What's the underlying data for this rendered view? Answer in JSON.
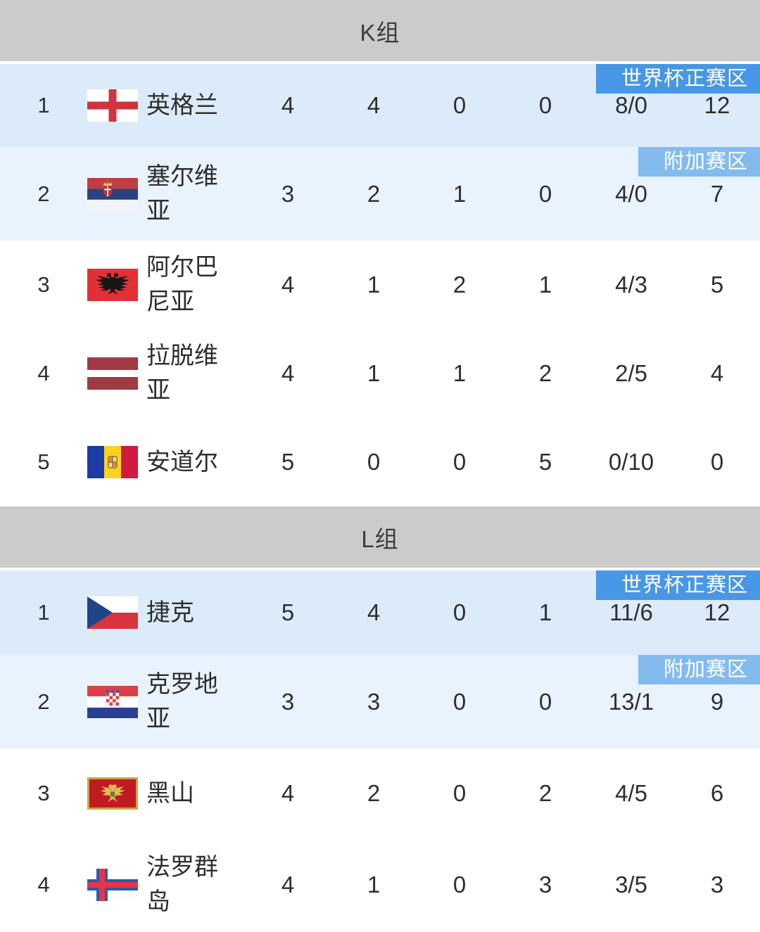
{
  "colors": {
    "header_bg": "#cbcbca",
    "header_text": "#3c3c3e",
    "rank1_row_bg": "#dcebfa",
    "rank2_row_bg": "#e9f3fd",
    "badge_qualified_bg": "#4897e6",
    "badge_playoff_bg": "#83bbef",
    "body_text": "#2e2e30"
  },
  "groups": [
    {
      "title": "K组",
      "rows": [
        {
          "rank": "1",
          "team": "英格兰",
          "flag": "england",
          "played": "4",
          "won": "4",
          "drawn": "0",
          "lost": "0",
          "goals": "8/0",
          "points": "12",
          "badge": "世界杯正赛区",
          "badge_type": "qualified"
        },
        {
          "rank": "2",
          "team": "塞尔维亚",
          "flag": "serbia",
          "played": "3",
          "won": "2",
          "drawn": "1",
          "lost": "0",
          "goals": "4/0",
          "points": "7",
          "badge": "附加赛区",
          "badge_type": "playoff"
        },
        {
          "rank": "3",
          "team": "阿尔巴尼亚",
          "flag": "albania",
          "played": "4",
          "won": "1",
          "drawn": "2",
          "lost": "1",
          "goals": "4/3",
          "points": "5",
          "badge": "",
          "badge_type": ""
        },
        {
          "rank": "4",
          "team": "拉脱维亚",
          "flag": "latvia",
          "played": "4",
          "won": "1",
          "drawn": "1",
          "lost": "2",
          "goals": "2/5",
          "points": "4",
          "badge": "",
          "badge_type": ""
        },
        {
          "rank": "5",
          "team": "安道尔",
          "flag": "andorra",
          "played": "5",
          "won": "0",
          "drawn": "0",
          "lost": "5",
          "goals": "0/10",
          "points": "0",
          "badge": "",
          "badge_type": ""
        }
      ]
    },
    {
      "title": "L组",
      "rows": [
        {
          "rank": "1",
          "team": "捷克",
          "flag": "czech",
          "played": "5",
          "won": "4",
          "drawn": "0",
          "lost": "1",
          "goals": "11/6",
          "points": "12",
          "badge": "世界杯正赛区",
          "badge_type": "qualified"
        },
        {
          "rank": "2",
          "team": "克罗地亚",
          "flag": "croatia",
          "played": "3",
          "won": "3",
          "drawn": "0",
          "lost": "0",
          "goals": "13/1",
          "points": "9",
          "badge": "附加赛区",
          "badge_type": "playoff"
        },
        {
          "rank": "3",
          "team": "黑山",
          "flag": "montenegro",
          "played": "4",
          "won": "2",
          "drawn": "0",
          "lost": "2",
          "goals": "4/5",
          "points": "6",
          "badge": "",
          "badge_type": ""
        },
        {
          "rank": "4",
          "team": "法罗群岛",
          "flag": "faroe",
          "played": "4",
          "won": "1",
          "drawn": "0",
          "lost": "3",
          "goals": "3/5",
          "points": "3",
          "badge": "",
          "badge_type": ""
        }
      ]
    }
  ]
}
